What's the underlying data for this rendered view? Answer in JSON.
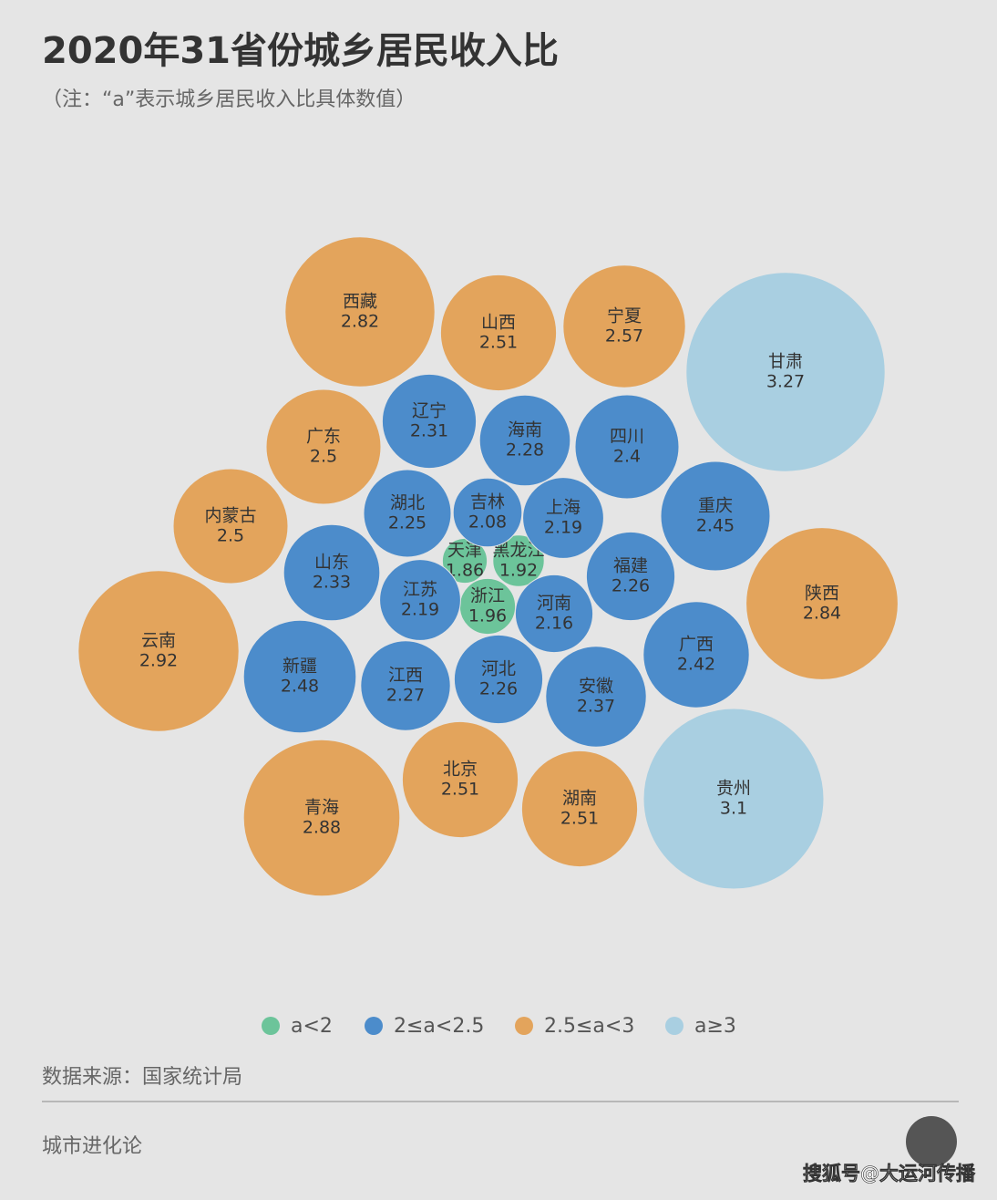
{
  "chart_data": {
    "type": "packed-bubble",
    "title": "2020年31省份城乡居民收入比",
    "subtitle": "（注：“a”表示城乡居民收入比具体数值）",
    "source": "数据来源：国家统计局",
    "brand": "城市进化论",
    "watermark": "搜狐号@大运河传播",
    "series": [
      {
        "name": "a<2",
        "color": "#6cc49a",
        "categories": [
          "天津",
          "黑龙江",
          "浙江"
        ],
        "values": [
          1.86,
          1.92,
          1.96
        ]
      },
      {
        "name": "2≤a<2.5",
        "color": "#4c8ccb",
        "categories": [
          "辽宁",
          "海南",
          "四川",
          "湖北",
          "吉林",
          "上海",
          "重庆",
          "山东",
          "福建",
          "江苏",
          "河南",
          "新疆",
          "江西",
          "河北",
          "广西",
          "安徽"
        ],
        "values": [
          2.31,
          2.28,
          2.4,
          2.25,
          2.08,
          2.19,
          2.45,
          2.33,
          2.26,
          2.19,
          2.16,
          2.48,
          2.27,
          2.26,
          2.42,
          2.37
        ]
      },
      {
        "name": "2.5≤a<3",
        "color": "#e3a45c",
        "categories": [
          "西藏",
          "山西",
          "宁夏",
          "广东",
          "内蒙古",
          "云南",
          "陕西",
          "北京",
          "湖南",
          "青海"
        ],
        "values": [
          2.82,
          2.51,
          2.57,
          2.5,
          2.5,
          2.92,
          2.84,
          2.51,
          2.51,
          2.88
        ]
      },
      {
        "name": "a≥3",
        "color": "#a9cfe1",
        "categories": [
          "甘肃",
          "贵州"
        ],
        "values": [
          3.27,
          3.1
        ]
      }
    ]
  }
}
